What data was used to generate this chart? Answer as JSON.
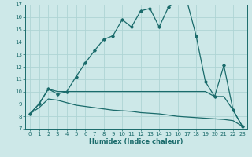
{
  "xlabel": "Humidex (Indice chaleur)",
  "bg_color": "#cde8e8",
  "grid_color": "#aed4d4",
  "line_color": "#1a6b6b",
  "xlim": [
    -0.5,
    23.5
  ],
  "ylim": [
    7,
    17
  ],
  "yticks": [
    7,
    8,
    9,
    10,
    11,
    12,
    13,
    14,
    15,
    16,
    17
  ],
  "xticks": [
    0,
    1,
    2,
    3,
    4,
    5,
    6,
    7,
    8,
    9,
    10,
    11,
    12,
    13,
    14,
    15,
    16,
    17,
    18,
    19,
    20,
    21,
    22,
    23
  ],
  "curve1_x": [
    0,
    1,
    2,
    3,
    4,
    5,
    6,
    7,
    8,
    9,
    10,
    11,
    12,
    13,
    14,
    15,
    16,
    17,
    18,
    19,
    20,
    21,
    22,
    23
  ],
  "curve1_y": [
    8.2,
    9.0,
    10.2,
    9.8,
    10.0,
    11.2,
    12.3,
    13.3,
    14.2,
    14.5,
    15.8,
    15.2,
    16.5,
    16.7,
    15.2,
    16.8,
    17.3,
    17.3,
    14.5,
    10.8,
    9.6,
    12.1,
    8.5,
    7.2
  ],
  "curve2_x": [
    0,
    1,
    2,
    3,
    4,
    5,
    6,
    7,
    8,
    9,
    10,
    11,
    12,
    13,
    14,
    15,
    16,
    17,
    18,
    19,
    20,
    21,
    22,
    23
  ],
  "curve2_y": [
    8.2,
    9.0,
    10.2,
    10.0,
    10.0,
    10.0,
    10.0,
    10.0,
    10.0,
    10.0,
    10.0,
    10.0,
    10.0,
    10.0,
    10.0,
    10.0,
    10.0,
    10.0,
    10.0,
    10.0,
    9.6,
    9.6,
    8.5,
    7.2
  ],
  "curve3_x": [
    0,
    1,
    2,
    3,
    4,
    5,
    6,
    7,
    8,
    9,
    10,
    11,
    12,
    13,
    14,
    15,
    16,
    17,
    18,
    19,
    20,
    21,
    22,
    23
  ],
  "curve3_y": [
    8.2,
    8.7,
    9.4,
    9.3,
    9.1,
    8.9,
    8.8,
    8.7,
    8.6,
    8.5,
    8.45,
    8.4,
    8.3,
    8.25,
    8.2,
    8.1,
    8.0,
    7.95,
    7.9,
    7.85,
    7.8,
    7.75,
    7.65,
    7.2
  ]
}
